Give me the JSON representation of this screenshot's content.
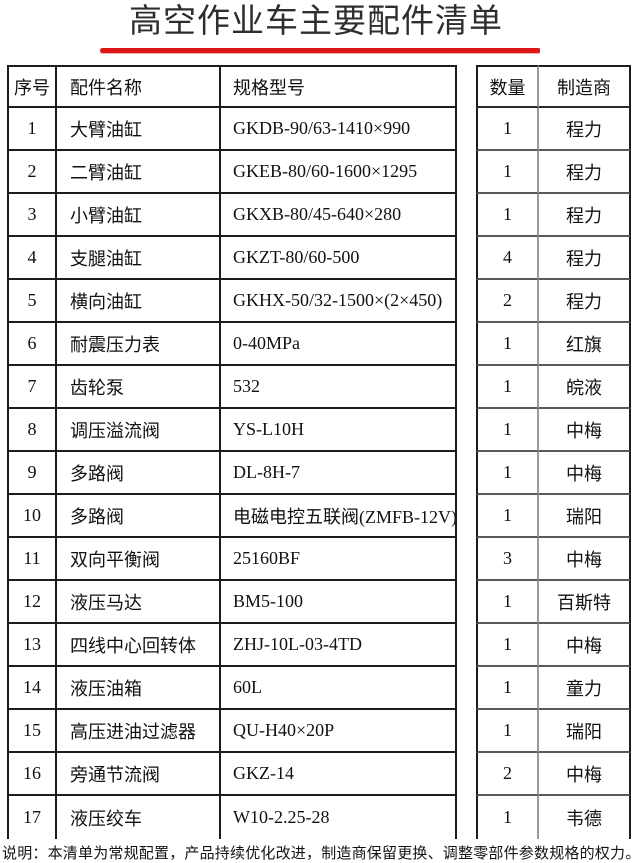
{
  "title": "高空作业车主要配件清单",
  "accent": {
    "underline_red": "#dd1717",
    "border_dark": "#1d1d1d",
    "border_light": "#9a9a9a"
  },
  "table": {
    "headers": {
      "seq": "序号",
      "name": "配件名称",
      "spec": "规格型号",
      "qty": "数量",
      "mfr": "制造商"
    },
    "rows": [
      {
        "seq": "1",
        "name": "大臂油缸",
        "spec": "GKDB-90/63-1410×990",
        "qty": "1",
        "mfr": "程力"
      },
      {
        "seq": "2",
        "name": "二臂油缸",
        "spec": "GKEB-80/60-1600×1295",
        "qty": "1",
        "mfr": "程力"
      },
      {
        "seq": "3",
        "name": "小臂油缸",
        "spec": "GKXB-80/45-640×280",
        "qty": "1",
        "mfr": "程力"
      },
      {
        "seq": "4",
        "name": "支腿油缸",
        "spec": "GKZT-80/60-500",
        "qty": "4",
        "mfr": "程力"
      },
      {
        "seq": "5",
        "name": "横向油缸",
        "spec": "GKHX-50/32-1500×(2×450)",
        "qty": "2",
        "mfr": "程力"
      },
      {
        "seq": "6",
        "name": "耐震压力表",
        "spec": "0-40MPa",
        "qty": "1",
        "mfr": "红旗"
      },
      {
        "seq": "7",
        "name": "齿轮泵",
        "spec": "532",
        "qty": "1",
        "mfr": "皖液"
      },
      {
        "seq": "8",
        "name": "调压溢流阀",
        "spec": "YS-L10H",
        "qty": "1",
        "mfr": "中梅"
      },
      {
        "seq": "9",
        "name": "多路阀",
        "spec": "DL-8H-7",
        "qty": "1",
        "mfr": "中梅"
      },
      {
        "seq": "10",
        "name": "多路阀",
        "spec": "电磁电控五联阀(ZMFB-12V)",
        "qty": "1",
        "mfr": "瑞阳"
      },
      {
        "seq": "11",
        "name": "双向平衡阀",
        "spec": "25160BF",
        "qty": "3",
        "mfr": "中梅"
      },
      {
        "seq": "12",
        "name": "液压马达",
        "spec": "BM5-100",
        "qty": "1",
        "mfr": "百斯特"
      },
      {
        "seq": "13",
        "name": "四线中心回转体",
        "spec": "ZHJ-10L-03-4TD",
        "qty": "1",
        "mfr": "中梅"
      },
      {
        "seq": "14",
        "name": "液压油箱",
        "spec": "60L",
        "qty": "1",
        "mfr": "童力"
      },
      {
        "seq": "15",
        "name": "高压进油过滤器",
        "spec": "QU-H40×20P",
        "qty": "1",
        "mfr": "瑞阳"
      },
      {
        "seq": "16",
        "name": "旁通节流阀",
        "spec": "GKZ-14",
        "qty": "2",
        "mfr": "中梅"
      },
      {
        "seq": "17",
        "name": "液压绞车",
        "spec": "W10-2.25-28",
        "qty": "1",
        "mfr": "韦德"
      }
    ]
  },
  "footer": "说明：本清单为常规配置，产品持续优化改进，制造商保留更换、调整零部件参数规格的权力。"
}
